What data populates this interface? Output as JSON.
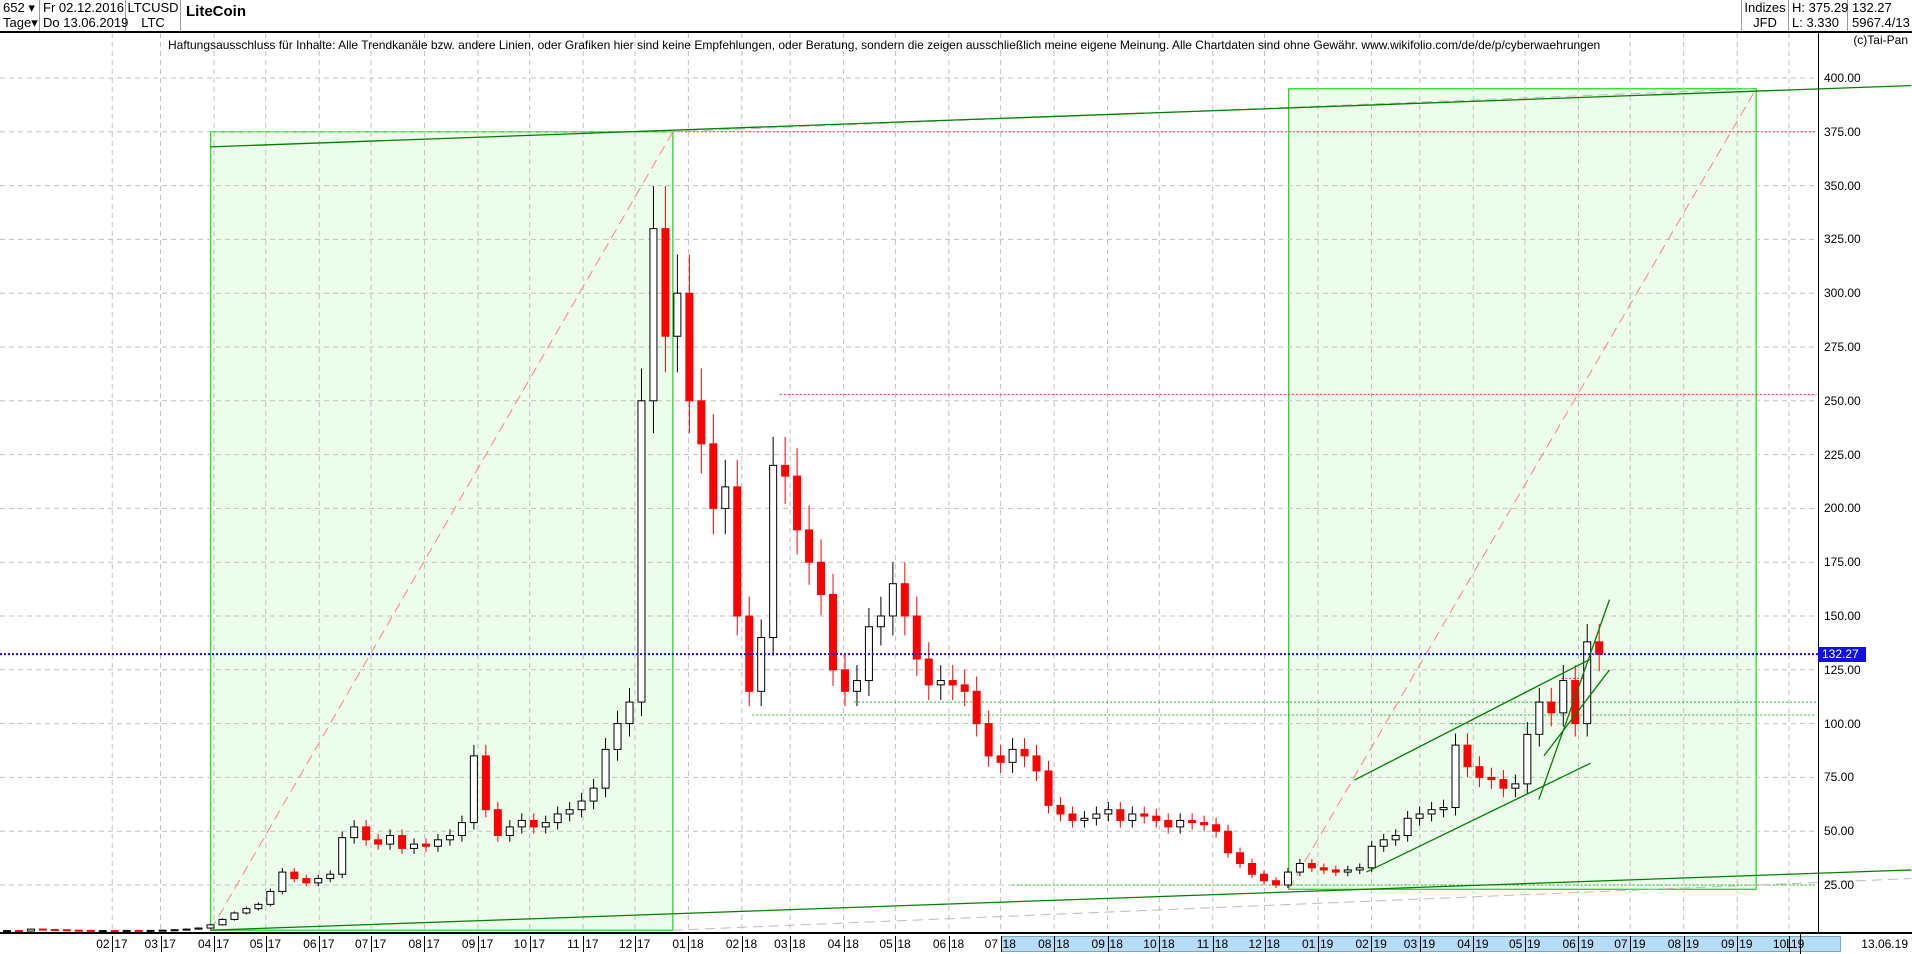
{
  "header": {
    "count": "652",
    "period": "Tage",
    "start_date": "Fr 02.12.2016",
    "end_date": "Do 13.06.2019",
    "symbol": "LTCUSD",
    "symbol_short": "LTC",
    "title": "LiteCoin",
    "category": "Indizes",
    "source": "JFD",
    "high": "H: 375.29",
    "low": "L: 3.330",
    "last": "132.27",
    "extra": "5967.4/13",
    "copyright": "(c)Tai-Pan"
  },
  "disclaimer": "Haftungsausschluss für Inhalte: Alle Trendkanäle bzw. andere Linien, oder Grafiken hier sind keine Empfehlungen, oder Beratung, sondern die zeigen ausschließlich meine eigene Meinung. Alle Chartdaten sind ohne Gewähr.  www.wikifolio.com/de/de/p/cyberwaehrungen",
  "footer": {
    "l_marker": "L",
    "end_date": "13.06.19"
  },
  "colors": {
    "up": "#000000",
    "down": "#ff0000",
    "box_fill": "#ecfdec",
    "box_line": "#22dd22",
    "trend": "#008000",
    "last_line": "#1010e0",
    "grid": "#c0c0c0"
  },
  "chart_data": {
    "type": "candlestick",
    "start": "2016-12-02",
    "end": "2019-06-13",
    "ylim": [
      0,
      410
    ],
    "yticks": [
      "25.00",
      "50.00",
      "75.00",
      "100.00",
      "125.00",
      "150.00",
      "175.00",
      "200.00",
      "225.00",
      "250.00",
      "275.00",
      "300.00",
      "325.00",
      "350.00",
      "375.00",
      "400.00"
    ],
    "last_value": 132.27,
    "last_label": "132.27",
    "grid": true,
    "months": [
      {
        "m": "02",
        "y": "17",
        "d": "2017-02-01"
      },
      {
        "m": "03",
        "y": "17",
        "d": "2017-03-01"
      },
      {
        "m": "04",
        "y": "17",
        "d": "2017-04-01"
      },
      {
        "m": "05",
        "y": "17",
        "d": "2017-05-01"
      },
      {
        "m": "06",
        "y": "17",
        "d": "2017-06-01"
      },
      {
        "m": "07",
        "y": "17",
        "d": "2017-07-01"
      },
      {
        "m": "08",
        "y": "17",
        "d": "2017-08-01"
      },
      {
        "m": "09",
        "y": "17",
        "d": "2017-09-01"
      },
      {
        "m": "10",
        "y": "17",
        "d": "2017-10-01"
      },
      {
        "m": "11",
        "y": "17",
        "d": "2017-11-01"
      },
      {
        "m": "12",
        "y": "17",
        "d": "2017-12-01"
      },
      {
        "m": "01",
        "y": "18",
        "d": "2018-01-01"
      },
      {
        "m": "02",
        "y": "18",
        "d": "2018-02-01"
      },
      {
        "m": "03",
        "y": "18",
        "d": "2018-03-01"
      },
      {
        "m": "04",
        "y": "18",
        "d": "2018-04-01"
      },
      {
        "m": "05",
        "y": "18",
        "d": "2018-05-01"
      },
      {
        "m": "06",
        "y": "18",
        "d": "2018-06-01"
      },
      {
        "m": "07",
        "y": "18",
        "d": "2018-07-01"
      },
      {
        "m": "08",
        "y": "18",
        "d": "2018-08-01"
      },
      {
        "m": "09",
        "y": "18",
        "d": "2018-09-01"
      },
      {
        "m": "10",
        "y": "18",
        "d": "2018-10-01"
      },
      {
        "m": "11",
        "y": "18",
        "d": "2018-11-01"
      },
      {
        "m": "12",
        "y": "18",
        "d": "2018-12-01"
      },
      {
        "m": "01",
        "y": "19",
        "d": "2019-01-01"
      },
      {
        "m": "02",
        "y": "19",
        "d": "2019-02-01"
      },
      {
        "m": "03",
        "y": "19",
        "d": "2019-03-01"
      },
      {
        "m": "04",
        "y": "19",
        "d": "2019-04-01"
      },
      {
        "m": "05",
        "y": "19",
        "d": "2019-05-01"
      },
      {
        "m": "06",
        "y": "19",
        "d": "2019-06-01"
      },
      {
        "m": "07",
        "y": "19",
        "d": "2019-07-01"
      },
      {
        "m": "08",
        "y": "19",
        "d": "2019-08-01"
      },
      {
        "m": "09",
        "y": "19",
        "d": "2019-09-01"
      },
      {
        "m": "10",
        "y": "19",
        "d": "2019-10-01"
      }
    ],
    "scroll_range": [
      "2018-07-01",
      "2019-10-31"
    ],
    "weekly_closes": [
      3.8,
      3.6,
      4.5,
      4.3,
      4.2,
      4.0,
      3.9,
      3.8,
      3.8,
      3.7,
      3.9,
      3.8,
      3.9,
      4.0,
      4.2,
      4.5,
      5.0,
      6.5,
      9,
      12,
      14,
      16,
      22,
      31,
      28,
      26,
      28,
      30,
      47,
      52,
      46,
      44,
      48,
      42,
      44,
      43,
      46,
      48,
      54,
      85,
      60,
      48,
      52,
      55,
      52,
      54,
      58,
      60,
      64,
      70,
      88,
      100,
      110,
      250,
      330,
      280,
      300,
      250,
      230,
      200,
      210,
      150,
      115,
      140,
      220,
      215,
      190,
      175,
      160,
      125,
      115,
      120,
      145,
      150,
      165,
      150,
      130,
      118,
      120,
      118,
      115,
      100,
      85,
      82,
      88,
      85,
      78,
      62,
      58,
      55,
      56,
      58,
      60,
      55,
      58,
      57,
      55,
      52,
      55,
      54,
      53,
      50,
      40,
      35,
      30,
      27,
      25,
      31,
      35,
      33,
      32,
      31,
      32,
      33,
      43,
      46,
      48,
      56,
      58,
      60,
      61,
      90,
      80,
      75,
      74,
      70,
      72,
      95,
      110,
      105,
      120,
      100,
      138,
      132.27
    ],
    "annotations": {
      "boxes": [
        {
          "from": "2017-03-30",
          "to": "2017-12-23",
          "low": 4,
          "high": 375
        },
        {
          "from": "2018-12-15",
          "to": "2019-09-12",
          "low": 23,
          "high": 395
        }
      ],
      "trend_lines": [
        {
          "from": [
            "2017-03-30",
            368
          ],
          "to": [
            "2019-12-11",
            396.5
          ]
        },
        {
          "from": [
            "2017-03-30",
            4
          ],
          "to": [
            "2019-12-11",
            32
          ]
        },
        {
          "from": [
            "2019-01-22",
            73.7
          ],
          "to": [
            "2019-06-08",
            130
          ]
        },
        {
          "from": [
            "2019-01-29",
            31
          ],
          "to": [
            "2019-06-08",
            81.6
          ]
        },
        {
          "from": [
            "2019-05-09",
            64.7
          ],
          "to": [
            "2019-06-19",
            157.6
          ]
        },
        {
          "from": [
            "2019-05-12",
            85
          ],
          "to": [
            "2019-06-19",
            125
          ]
        }
      ],
      "diagonals": [
        {
          "from": [
            "2017-03-30",
            4
          ],
          "to": [
            "2017-12-23",
            375
          ]
        },
        {
          "from": [
            "2018-12-15",
            23
          ],
          "to": [
            "2019-09-12",
            395
          ]
        }
      ],
      "gray_dashed": [
        {
          "from": [
            "2017-12-22",
            375
          ],
          "to": [
            "2019-09-12",
            395
          ]
        },
        {
          "from": [
            "2017-12-23",
            4
          ],
          "to": [
            "2019-12-11",
            28
          ]
        }
      ],
      "red_levels": [
        {
          "from": "2017-12-23",
          "to": "2019-10-17",
          "value": 375
        },
        {
          "from": "2018-02-23",
          "to": "2019-10-17",
          "value": 253
        },
        {
          "from": "2019-03-19",
          "to": "2019-05-07",
          "value": 100
        },
        {
          "from": "2019-05-22",
          "to": "2019-06-08",
          "value": 121
        }
      ],
      "green_levels": [
        {
          "from": "2018-02-07",
          "to": "2019-10-17",
          "value": 104
        },
        {
          "from": "2018-04-07",
          "to": "2019-10-17",
          "value": 110
        },
        {
          "from": "2018-07-08",
          "to": "2019-10-17",
          "value": 25
        }
      ]
    }
  }
}
